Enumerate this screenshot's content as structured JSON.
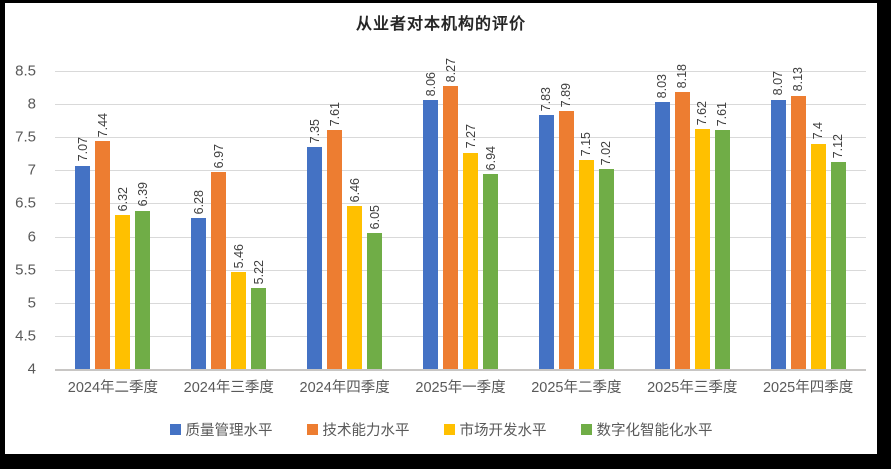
{
  "chart_data": {
    "type": "bar",
    "title": "从业者对本机构的评价",
    "categories": [
      "2024年二季度",
      "2024年三季度",
      "2024年四季度",
      "2025年一季度",
      "2025年二季度",
      "2025年三季度",
      "2025年四季度"
    ],
    "series": [
      {
        "name": "质量管理水平",
        "color": "#4472C4",
        "values": [
          7.07,
          6.28,
          7.35,
          8.06,
          7.83,
          8.03,
          8.07
        ]
      },
      {
        "name": "技术能力水平",
        "color": "#ED7D31",
        "values": [
          7.44,
          6.97,
          7.61,
          8.27,
          7.89,
          8.18,
          8.13
        ]
      },
      {
        "name": "市场开发水平",
        "color": "#FFC000",
        "values": [
          6.32,
          5.46,
          6.46,
          7.27,
          7.15,
          7.62,
          7.4
        ]
      },
      {
        "name": "数字化智能化水平",
        "color": "#70AD47",
        "values": [
          6.39,
          5.22,
          6.05,
          6.94,
          7.02,
          7.61,
          7.12
        ]
      }
    ],
    "y_axis": {
      "min": 4,
      "max": 8.5,
      "step": 0.5,
      "ticks": [
        "8.5",
        "8",
        "7.5",
        "7",
        "6.5",
        "6",
        "5.5",
        "5",
        "4.5",
        "4"
      ]
    },
    "grid": true,
    "legend_position": "bottom",
    "data_labels": {
      "rotation": -90,
      "color": "#404040"
    },
    "gridline_color": "#D9D9D9",
    "axis_line_color": "#C8C6C4"
  }
}
